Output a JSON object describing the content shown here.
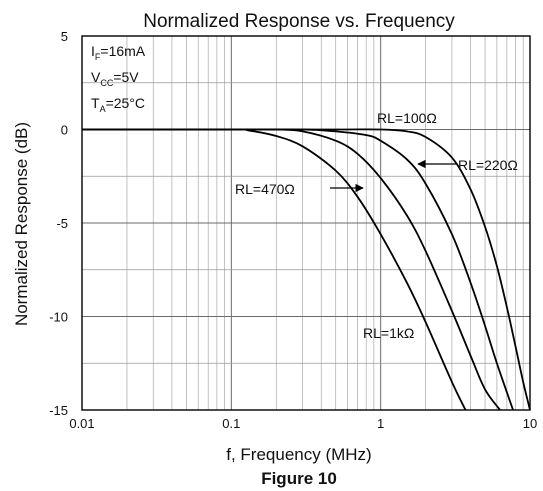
{
  "chart_data": {
    "type": "line",
    "title": "Normalized Response vs. Frequency",
    "xlabel": "f, Frequency (MHz)",
    "ylabel": "Normalized Response (dB)",
    "caption": "Figure 10",
    "x_scale": "log",
    "xlim": [
      0.01,
      10
    ],
    "ylim": [
      -15,
      5
    ],
    "grid": true,
    "x_tick_labels": [
      {
        "value": 0.01,
        "label": "0.01"
      },
      {
        "value": 0.1,
        "label": "0.1"
      },
      {
        "value": 1,
        "label": "1"
      },
      {
        "value": 10,
        "label": "10"
      }
    ],
    "y_tick_labels": [
      {
        "value": 5,
        "label": "5"
      },
      {
        "value": 0,
        "label": "0"
      },
      {
        "value": -5,
        "label": "-5"
      },
      {
        "value": -10,
        "label": "-10"
      },
      {
        "value": -15,
        "label": "-15"
      }
    ],
    "conditions": [
      {
        "base": "I",
        "sub": "F",
        "rest": "=16mA"
      },
      {
        "base": "V",
        "sub": "CC",
        "rest": "=5V"
      },
      {
        "base": "T",
        "sub": "A",
        "rest": "=25°C"
      }
    ],
    "series": [
      {
        "name": "RL=100Ω",
        "x": [
          0.01,
          0.1,
          0.5,
          1,
          1.5,
          2,
          3,
          4,
          5,
          6,
          7,
          8,
          9,
          10
        ],
        "y": [
          0,
          0,
          0,
          0,
          -0.1,
          -0.4,
          -1.5,
          -3.2,
          -5.2,
          -7.3,
          -9.5,
          -11.6,
          -13.5,
          -15
        ]
      },
      {
        "name": "RL=220Ω",
        "x": [
          0.01,
          0.1,
          0.3,
          0.5,
          0.8,
          1,
          1.5,
          2,
          3,
          4,
          5,
          6,
          7.7
        ],
        "y": [
          0,
          0,
          0,
          -0.1,
          -0.3,
          -0.6,
          -1.6,
          -2.9,
          -5.6,
          -8.2,
          -10.5,
          -12.5,
          -15
        ]
      },
      {
        "name": "RL=470Ω",
        "x": [
          0.01,
          0.1,
          0.2,
          0.3,
          0.5,
          0.7,
          1,
          1.5,
          2,
          3,
          4,
          5,
          6.3
        ],
        "y": [
          0,
          0,
          0,
          -0.1,
          -0.6,
          -1.3,
          -2.6,
          -4.6,
          -6.5,
          -9.7,
          -12.1,
          -13.9,
          -15
        ]
      },
      {
        "name": "RL=1kΩ",
        "x": [
          0.01,
          0.1,
          0.13,
          0.2,
          0.3,
          0.5,
          0.7,
          1,
          1.5,
          2,
          3,
          3.7
        ],
        "y": [
          0,
          0,
          -0.05,
          -0.35,
          -0.9,
          -2.2,
          -3.6,
          -5.6,
          -8.2,
          -10.3,
          -13.5,
          -15
        ]
      }
    ],
    "annotations": [
      {
        "text": "RL=100Ω"
      },
      {
        "text": "RL=220Ω"
      },
      {
        "text": "RL=470Ω"
      },
      {
        "text": "RL=1kΩ"
      }
    ]
  }
}
